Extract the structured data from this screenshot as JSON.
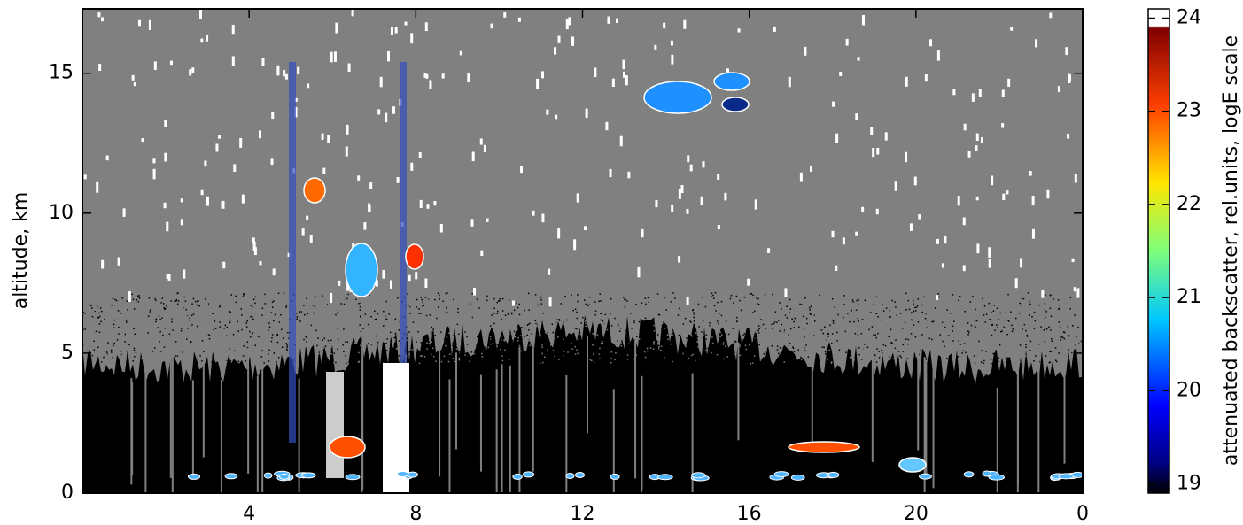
{
  "chart_data": {
    "type": "heatmap",
    "ylabel": "altitude, km",
    "xlim": [
      0,
      24
    ],
    "xticks": [
      4,
      8,
      12,
      16,
      20,
      {
        "value": 24,
        "label": "0"
      }
    ],
    "ylim": [
      0,
      17.3
    ],
    "yticks": [
      0,
      5,
      10,
      15
    ],
    "colorbar": {
      "label": "attenuated backscatter, rel.units, logE scale",
      "lim": [
        18.9,
        24.1
      ],
      "ticks": [
        19,
        20,
        21,
        22,
        23,
        24
      ],
      "colormap": "jet"
    }
  }
}
